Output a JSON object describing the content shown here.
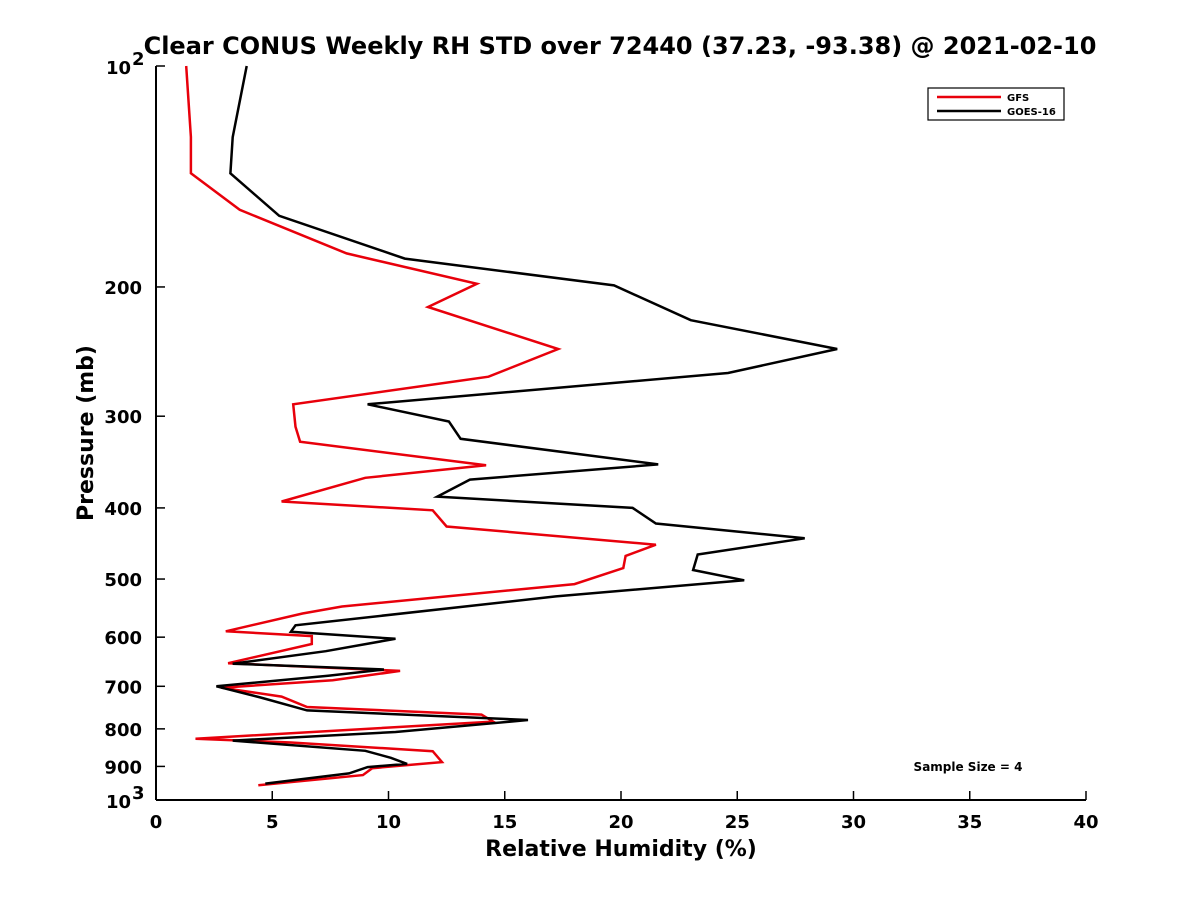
{
  "chart_data": {
    "type": "line",
    "title": "Clear CONUS Weekly RH STD over 72440 (37.23, -93.38) @ 2021-02-10",
    "xlabel": "Relative Humidity (%)",
    "ylabel": "Pressure (mb)",
    "xlim": [
      0,
      40
    ],
    "ylim": [
      100,
      1000
    ],
    "y_scale": "log",
    "y_reversed": true,
    "x_ticks": [
      {
        "value": 0,
        "label": "0"
      },
      {
        "value": 5,
        "label": "5"
      },
      {
        "value": 10,
        "label": "10"
      },
      {
        "value": 15,
        "label": "15"
      },
      {
        "value": 20,
        "label": "20"
      },
      {
        "value": 25,
        "label": "25"
      },
      {
        "value": 30,
        "label": "30"
      },
      {
        "value": 35,
        "label": "35"
      },
      {
        "value": 40,
        "label": "40"
      }
    ],
    "y_ticks": [
      {
        "value": 100,
        "base": "10",
        "exp": "2"
      },
      {
        "value": 200,
        "label": "200"
      },
      {
        "value": 300,
        "label": "300"
      },
      {
        "value": 400,
        "label": "400"
      },
      {
        "value": 500,
        "label": "500"
      },
      {
        "value": 600,
        "label": "600"
      },
      {
        "value": 700,
        "label": "700"
      },
      {
        "value": 800,
        "label": "800"
      },
      {
        "value": 900,
        "label": "900"
      },
      {
        "value": 1000,
        "base": "10",
        "exp": "3"
      }
    ],
    "legend_position": "top-right",
    "grid": false,
    "annotation": "Sample Size = 4",
    "series": [
      {
        "name": "GFS",
        "color": "#e8000b",
        "points": [
          [
            1.3,
            100
          ],
          [
            1.5,
            125
          ],
          [
            1.5,
            140
          ],
          [
            3.6,
            157
          ],
          [
            8.2,
            180
          ],
          [
            13.8,
            198
          ],
          [
            11.7,
            213
          ],
          [
            17.3,
            243
          ],
          [
            14.3,
            265
          ],
          [
            5.9,
            289
          ],
          [
            6.0,
            310
          ],
          [
            6.2,
            325
          ],
          [
            14.2,
            350
          ],
          [
            9.0,
            364
          ],
          [
            5.4,
            392
          ],
          [
            11.9,
            403
          ],
          [
            12.5,
            424
          ],
          [
            21.5,
            449
          ],
          [
            20.2,
            465
          ],
          [
            20.1,
            483
          ],
          [
            18.0,
            508
          ],
          [
            8.0,
            545
          ],
          [
            6.3,
            557
          ],
          [
            3.0,
            589
          ],
          [
            6.7,
            598
          ],
          [
            6.7,
            613
          ],
          [
            3.1,
            651
          ],
          [
            10.5,
            667
          ],
          [
            7.6,
            687
          ],
          [
            2.8,
            703
          ],
          [
            5.4,
            723
          ],
          [
            6.5,
            747
          ],
          [
            14.0,
            765
          ],
          [
            14.5,
            782
          ],
          [
            1.7,
            825
          ],
          [
            5.8,
            835
          ],
          [
            11.9,
            858
          ],
          [
            12.3,
            888
          ],
          [
            9.3,
            905
          ],
          [
            8.9,
            925
          ],
          [
            4.4,
            955
          ]
        ]
      },
      {
        "name": "GOES-16",
        "color": "#000000",
        "points": [
          [
            3.9,
            100
          ],
          [
            3.3,
            125
          ],
          [
            3.2,
            140
          ],
          [
            5.3,
            160
          ],
          [
            10.7,
            183
          ],
          [
            19.7,
            199
          ],
          [
            23.0,
            222
          ],
          [
            29.3,
            243
          ],
          [
            24.6,
            262
          ],
          [
            9.1,
            289
          ],
          [
            12.6,
            305
          ],
          [
            13.1,
            322
          ],
          [
            21.6,
            349
          ],
          [
            13.5,
            366
          ],
          [
            12.1,
            386
          ],
          [
            20.5,
            400
          ],
          [
            21.5,
            420
          ],
          [
            27.9,
            440
          ],
          [
            23.3,
            463
          ],
          [
            23.1,
            486
          ],
          [
            25.3,
            502
          ],
          [
            17.2,
            528
          ],
          [
            6.0,
            578
          ],
          [
            5.8,
            590
          ],
          [
            10.3,
            603
          ],
          [
            7.3,
            627
          ],
          [
            3.3,
            652
          ],
          [
            9.8,
            664
          ],
          [
            7.4,
            677
          ],
          [
            2.6,
            700
          ],
          [
            4.5,
            725
          ],
          [
            6.5,
            755
          ],
          [
            16.0,
            778
          ],
          [
            10.3,
            808
          ],
          [
            3.3,
            830
          ],
          [
            9.0,
            857
          ],
          [
            10.1,
            876
          ],
          [
            10.8,
            893
          ],
          [
            9.1,
            902
          ],
          [
            8.3,
            920
          ],
          [
            4.7,
            950
          ]
        ]
      }
    ]
  }
}
